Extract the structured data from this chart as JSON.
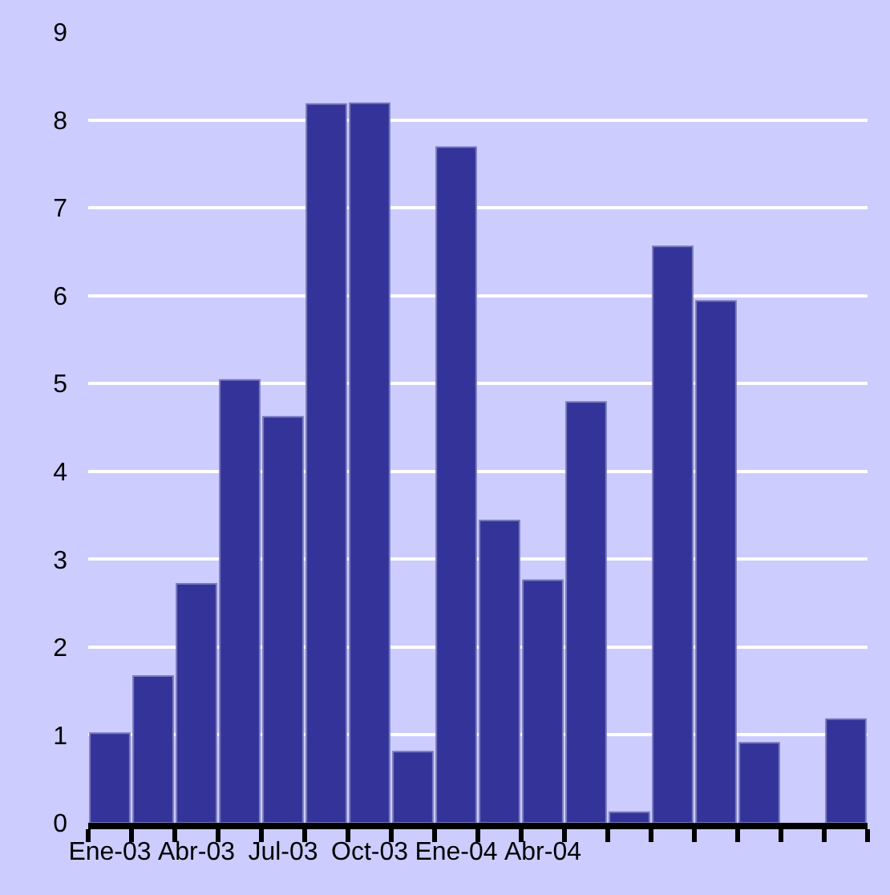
{
  "chart_data": {
    "type": "bar",
    "categories": [
      "Ene-03",
      null,
      "Abr-03",
      null,
      "Jul-03",
      null,
      "Oct-03",
      null,
      "Ene-04",
      null,
      "Abr-04",
      null,
      null,
      null,
      null,
      null,
      null,
      null
    ],
    "values": [
      1.02,
      1.67,
      2.72,
      5.04,
      4.62,
      8.18,
      8.19,
      0.81,
      7.69,
      3.44,
      2.76,
      4.79,
      0.12,
      6.56,
      5.94,
      0.91,
      null,
      1.18
    ],
    "color": "#333399",
    "ylim": [
      0,
      9
    ],
    "yticks": [
      0,
      1,
      2,
      3,
      4,
      5,
      6,
      7,
      8,
      9
    ],
    "grid": "y"
  }
}
